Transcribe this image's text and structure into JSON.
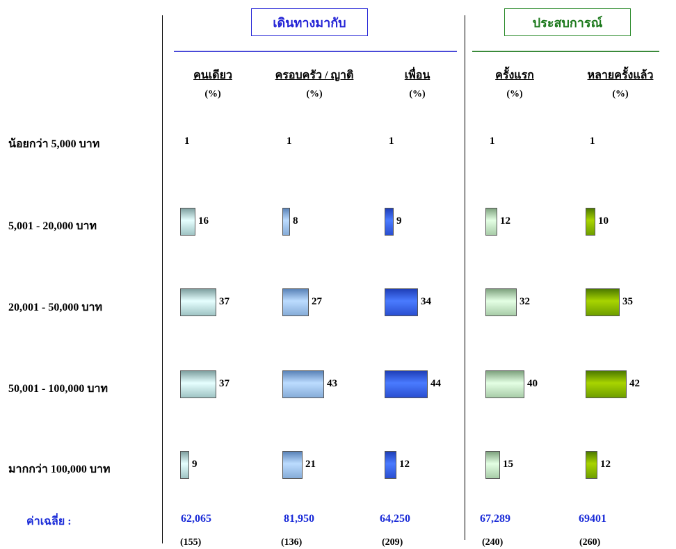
{
  "groups": {
    "travel": {
      "label": "เดินทางมากับ",
      "color": "#2323d6"
    },
    "experience": {
      "label": "ประสบการณ์",
      "color": "#1e7a1e"
    }
  },
  "columns": [
    {
      "key": "alone",
      "label": "คนเดียว",
      "unit": "(%)",
      "average": "62,065",
      "n": "(155)",
      "colors": [
        "#7fa0a0",
        "#e6ffff",
        "#9fc4c4"
      ]
    },
    {
      "key": "family",
      "label": "ครอบครัว / ญาติ",
      "unit": "(%)",
      "average": "81,950",
      "n": "(136)",
      "colors": [
        "#5a83b8",
        "#bcdcff",
        "#86acd8"
      ]
    },
    {
      "key": "friends",
      "label": "เพื่อน",
      "unit": "(%)",
      "average": "64,250",
      "n": "(209)",
      "colors": [
        "#1f3fb8",
        "#4a7bff",
        "#2a4fd0"
      ]
    },
    {
      "key": "first",
      "label": "ครั้งแรก",
      "unit": "(%)",
      "average": "67,289",
      "n": "(240)",
      "colors": [
        "#7ea27e",
        "#e4ffe4",
        "#a8cca8"
      ]
    },
    {
      "key": "repeat",
      "label": "หลายครั้งแล้ว",
      "unit": "(%)",
      "average": "69401",
      "n": "(260)",
      "colors": [
        "#4d7a00",
        "#a8d400",
        "#6e9e00"
      ]
    }
  ],
  "average_label": "ค่าเฉลี่ย   :",
  "chart_data": {
    "type": "bar",
    "categories": [
      "น้อยกว่า 5,000 บาท",
      "5,001 - 20,000 บาท",
      "20,001 - 50,000 บาท",
      "50,001 - 100,000 บาท",
      "มากกว่า 100,000 บาท"
    ],
    "series": [
      {
        "name": "คนเดียว",
        "values": [
          1,
          16,
          37,
          37,
          9
        ]
      },
      {
        "name": "ครอบครัว / ญาติ",
        "values": [
          1,
          8,
          27,
          43,
          21
        ]
      },
      {
        "name": "เพื่อน",
        "values": [
          1,
          9,
          34,
          44,
          12
        ]
      },
      {
        "name": "ครั้งแรก",
        "values": [
          1,
          12,
          32,
          40,
          15
        ]
      },
      {
        "name": "หลายครั้งแล้ว",
        "values": [
          1,
          10,
          35,
          42,
          12
        ]
      }
    ],
    "unit": "%"
  }
}
